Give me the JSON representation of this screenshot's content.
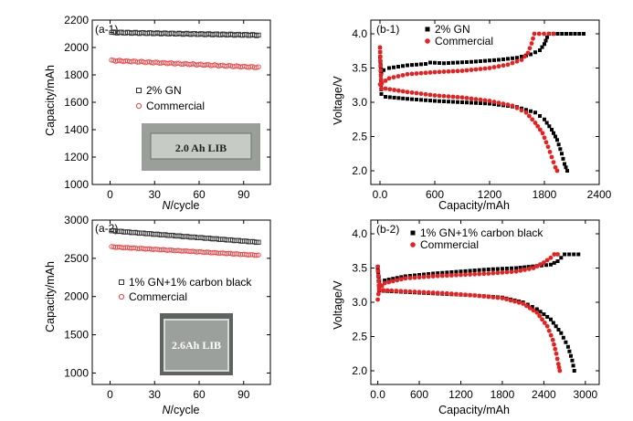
{
  "chart_data": [
    {
      "id": "a1",
      "type": "scatter",
      "panel_label": "(a-1)",
      "xlabel_prefix": "N",
      "xlabel_suffix": "/cycle",
      "ylabel": "Capacity/mAh",
      "xlim": [
        -12,
        108
      ],
      "ylim": [
        1000,
        2200
      ],
      "xticks": [
        0,
        30,
        60,
        90
      ],
      "yticks": [
        1000,
        1200,
        1400,
        1600,
        1800,
        2000,
        2200
      ],
      "legend": [
        "2% GN",
        "Commercial"
      ],
      "inset_photo_label": "2.0 Ah   LIB",
      "series": [
        {
          "name": "2% GN",
          "marker": "open-square",
          "color": "#333333",
          "x_range": [
            1,
            100
          ],
          "n": 75,
          "start": 2110,
          "end": 2090
        },
        {
          "name": "Commercial",
          "marker": "open-circle",
          "color": "#ee4444",
          "x_range": [
            1,
            100
          ],
          "n": 75,
          "start": 1905,
          "end": 1855
        }
      ]
    },
    {
      "id": "b1",
      "type": "scatter",
      "panel_label": "(b-1)",
      "xlabel": "Capacity/mAh",
      "ylabel": "Voltage/V",
      "xlim": [
        -100,
        2400
      ],
      "ylim": [
        1.8,
        4.2
      ],
      "xticks": [
        0,
        600,
        1200,
        1800,
        2400
      ],
      "yticks": [
        2.0,
        2.5,
        3.0,
        3.5,
        4.0
      ],
      "legend": [
        "2% GN",
        "Commercial"
      ],
      "series": [
        {
          "name": "2% GN charge",
          "color": "#000000",
          "points": [
            [
              0,
              3.66
            ],
            [
              15,
              3.42
            ],
            [
              40,
              3.47
            ],
            [
              100,
              3.5
            ],
            [
              300,
              3.54
            ],
            [
              500,
              3.56
            ],
            [
              550,
              3.58
            ],
            [
              700,
              3.57
            ],
            [
              1000,
              3.59
            ],
            [
              1300,
              3.62
            ],
            [
              1500,
              3.65
            ],
            [
              1650,
              3.7
            ],
            [
              1750,
              3.76
            ],
            [
              1800,
              3.85
            ],
            [
              1830,
              3.95
            ],
            [
              1850,
              4.0
            ],
            [
              2230,
              4.0
            ]
          ]
        },
        {
          "name": "2% GN discharge",
          "color": "#000000",
          "points": [
            [
              0,
              3.8
            ],
            [
              15,
              3.12
            ],
            [
              60,
              3.08
            ],
            [
              300,
              3.05
            ],
            [
              600,
              3.02
            ],
            [
              900,
              3.0
            ],
            [
              1200,
              2.98
            ],
            [
              1500,
              2.93
            ],
            [
              1700,
              2.85
            ],
            [
              1800,
              2.75
            ],
            [
              1880,
              2.6
            ],
            [
              1940,
              2.45
            ],
            [
              1990,
              2.25
            ],
            [
              2020,
              2.1
            ],
            [
              2050,
              2.0
            ]
          ]
        },
        {
          "name": "Commercial charge",
          "color": "#e82020",
          "points": [
            [
              0,
              3.26
            ],
            [
              20,
              3.28
            ],
            [
              100,
              3.35
            ],
            [
              300,
              3.41
            ],
            [
              600,
              3.44
            ],
            [
              900,
              3.46
            ],
            [
              1200,
              3.5
            ],
            [
              1400,
              3.55
            ],
            [
              1550,
              3.62
            ],
            [
              1620,
              3.72
            ],
            [
              1660,
              3.86
            ],
            [
              1690,
              4.0
            ],
            [
              1900,
              4.0
            ]
          ]
        },
        {
          "name": "Commercial discharge",
          "color": "#e82020",
          "points": [
            [
              0,
              3.8
            ],
            [
              15,
              3.2
            ],
            [
              60,
              3.2
            ],
            [
              300,
              3.15
            ],
            [
              600,
              3.1
            ],
            [
              900,
              3.07
            ],
            [
              1200,
              3.02
            ],
            [
              1450,
              2.95
            ],
            [
              1600,
              2.85
            ],
            [
              1700,
              2.7
            ],
            [
              1780,
              2.55
            ],
            [
              1840,
              2.35
            ],
            [
              1880,
              2.2
            ],
            [
              1920,
              2.05
            ],
            [
              1940,
              2.0
            ]
          ]
        }
      ]
    },
    {
      "id": "a2",
      "type": "scatter",
      "panel_label": "(a-2)",
      "xlabel_prefix": "N",
      "xlabel_suffix": "/cycle",
      "ylabel": "Capacity/mAh",
      "xlim": [
        -12,
        108
      ],
      "ylim": [
        850,
        3000
      ],
      "xticks": [
        0,
        30,
        60,
        90
      ],
      "yticks": [
        1000,
        1500,
        2000,
        2500,
        3000
      ],
      "legend": [
        "1% GN+1% carbon black",
        "Commercial"
      ],
      "inset_photo_label": "2.6Ah   LIB",
      "series": [
        {
          "name": "1% GN+1% carbon black",
          "marker": "open-square",
          "color": "#333333",
          "x_range": [
            1,
            100
          ],
          "n": 75,
          "start": 2860,
          "end": 2710
        },
        {
          "name": "Commercial",
          "marker": "open-circle",
          "color": "#ee4444",
          "x_range": [
            1,
            100
          ],
          "n": 75,
          "start": 2650,
          "end": 2540
        }
      ]
    },
    {
      "id": "b2",
      "type": "scatter",
      "panel_label": "(b-2)",
      "xlabel": "Capacity/mAh",
      "ylabel": "Voltage/V",
      "xlim": [
        -100,
        3200
      ],
      "ylim": [
        1.8,
        4.2
      ],
      "xticks": [
        0,
        600,
        1200,
        1800,
        2400,
        3000
      ],
      "yticks": [
        2.0,
        2.5,
        3.0,
        3.5,
        4.0
      ],
      "legend": [
        "1% GN+1% carbon black",
        "Commercial"
      ],
      "series": [
        {
          "name": "1% GN+1% CB charge",
          "color": "#000000",
          "points": [
            [
              0,
              3.5
            ],
            [
              30,
              3.25
            ],
            [
              100,
              3.32
            ],
            [
              400,
              3.38
            ],
            [
              800,
              3.42
            ],
            [
              1200,
              3.45
            ],
            [
              1600,
              3.48
            ],
            [
              2000,
              3.5
            ],
            [
              2300,
              3.53
            ],
            [
              2500,
              3.55
            ],
            [
              2600,
              3.6
            ],
            [
              2650,
              3.65
            ],
            [
              2700,
              3.7
            ],
            [
              2900,
              3.7
            ]
          ]
        },
        {
          "name": "1% GN+1% CB discharge",
          "color": "#000000",
          "points": [
            [
              0,
              3.52
            ],
            [
              20,
              3.17
            ],
            [
              200,
              3.16
            ],
            [
              600,
              3.14
            ],
            [
              1000,
              3.12
            ],
            [
              1400,
              3.1
            ],
            [
              1800,
              3.07
            ],
            [
              2100,
              3.0
            ],
            [
              2300,
              2.9
            ],
            [
              2500,
              2.75
            ],
            [
              2650,
              2.55
            ],
            [
              2750,
              2.35
            ],
            [
              2810,
              2.15
            ],
            [
              2840,
              2.0
            ]
          ]
        },
        {
          "name": "Commercial charge",
          "color": "#e82020",
          "points": [
            [
              0,
              3.04
            ],
            [
              20,
              3.2
            ],
            [
              100,
              3.28
            ],
            [
              400,
              3.35
            ],
            [
              800,
              3.38
            ],
            [
              1200,
              3.4
            ],
            [
              1600,
              3.42
            ],
            [
              2000,
              3.45
            ],
            [
              2250,
              3.5
            ],
            [
              2400,
              3.58
            ],
            [
              2500,
              3.65
            ],
            [
              2550,
              3.7
            ],
            [
              2600,
              3.7
            ]
          ]
        },
        {
          "name": "Commercial discharge",
          "color": "#e82020",
          "points": [
            [
              0,
              3.52
            ],
            [
              20,
              3.18
            ],
            [
              200,
              3.17
            ],
            [
              600,
              3.15
            ],
            [
              1000,
              3.13
            ],
            [
              1400,
              3.1
            ],
            [
              1800,
              3.06
            ],
            [
              2100,
              2.98
            ],
            [
              2300,
              2.85
            ],
            [
              2450,
              2.65
            ],
            [
              2530,
              2.45
            ],
            [
              2580,
              2.25
            ],
            [
              2610,
              2.1
            ],
            [
              2630,
              2.0
            ]
          ]
        }
      ]
    }
  ]
}
